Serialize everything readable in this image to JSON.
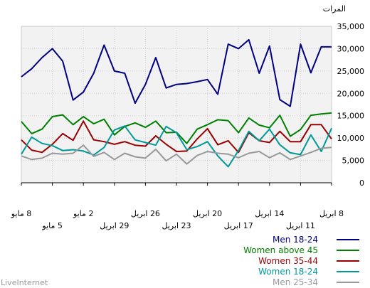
{
  "chart_data": {
    "type": "line",
    "ylabel": "المرات",
    "ylim": [
      0,
      35000
    ],
    "y_ticks": [
      "0",
      "5,000",
      "10,000",
      "15,000",
      "20,000",
      "25,000",
      "30,000",
      "35,000"
    ],
    "x_ticks": [
      {
        "label": "8 مايو",
        "row": 1
      },
      {
        "label": "5 مايو",
        "row": 2
      },
      {
        "label": "2 مايو",
        "row": 1
      },
      {
        "label": "29 ابريل",
        "row": 2
      },
      {
        "label": "26 ابريل",
        "row": 1
      },
      {
        "label": "23 ابريل",
        "row": 2
      },
      {
        "label": "20 ابريل",
        "row": 1
      },
      {
        "label": "17 ابريل",
        "row": 2
      },
      {
        "label": "14 ابريل",
        "row": 1
      },
      {
        "label": "11 ابريل",
        "row": 2
      },
      {
        "label": "8 ابريل",
        "row": 1
      }
    ],
    "x_order": "reversed",
    "grid": true,
    "legend_position": "bottom-right",
    "series": [
      {
        "name": "Men 18-24",
        "color": "#000080",
        "values": [
          23700,
          25500,
          28000,
          30000,
          27200,
          18500,
          20300,
          24500,
          30800,
          25000,
          24500,
          17800,
          22000,
          28000,
          21200,
          22000,
          22200,
          22600,
          23100,
          19800,
          31000,
          30000,
          32000,
          24500,
          30600,
          18600,
          17100,
          31000,
          24600,
          30400,
          30400
        ]
      },
      {
        "name": "Women above 45",
        "color": "#008000",
        "values": [
          13700,
          11000,
          12000,
          14800,
          15200,
          13000,
          14800,
          13200,
          14200,
          10700,
          12600,
          13400,
          12400,
          13800,
          11200,
          11300,
          8800,
          12000,
          13000,
          14100,
          13900,
          11200,
          14500,
          12900,
          12300,
          15100,
          10400,
          11900,
          15100,
          15400,
          15600
        ]
      },
      {
        "name": "Women 35-44",
        "color": "#990000",
        "values": [
          9600,
          7300,
          6800,
          8600,
          11000,
          9500,
          13800,
          9600,
          9200,
          8600,
          9200,
          8400,
          8200,
          10500,
          8600,
          7000,
          7100,
          9800,
          12100,
          8500,
          9400,
          6800,
          11200,
          9400,
          9000,
          11500,
          9200,
          9200,
          13000,
          13000,
          9800
        ]
      },
      {
        "name": "Women 18-24",
        "color": "#009999",
        "values": [
          6400,
          10200,
          8800,
          8300,
          7200,
          7400,
          7100,
          6200,
          7900,
          11800,
          12700,
          9600,
          9000,
          8400,
          12600,
          11200,
          7400,
          8100,
          9200,
          6000,
          3600,
          7200,
          11500,
          9400,
          12000,
          8500,
          6700,
          6300,
          10700,
          7000,
          12200
        ]
      },
      {
        "name": "Men 25-34",
        "color": "#999999",
        "values": [
          6000,
          5200,
          5500,
          6600,
          6400,
          6600,
          8400,
          5900,
          6800,
          5200,
          6600,
          5800,
          5500,
          7500,
          4900,
          6400,
          4200,
          6100,
          7000,
          6600,
          6400,
          5600,
          6600,
          7000,
          5600,
          6700,
          5200,
          6000,
          6800,
          7700,
          7900
        ]
      }
    ]
  },
  "brand": {
    "text": "LiveInternet"
  }
}
